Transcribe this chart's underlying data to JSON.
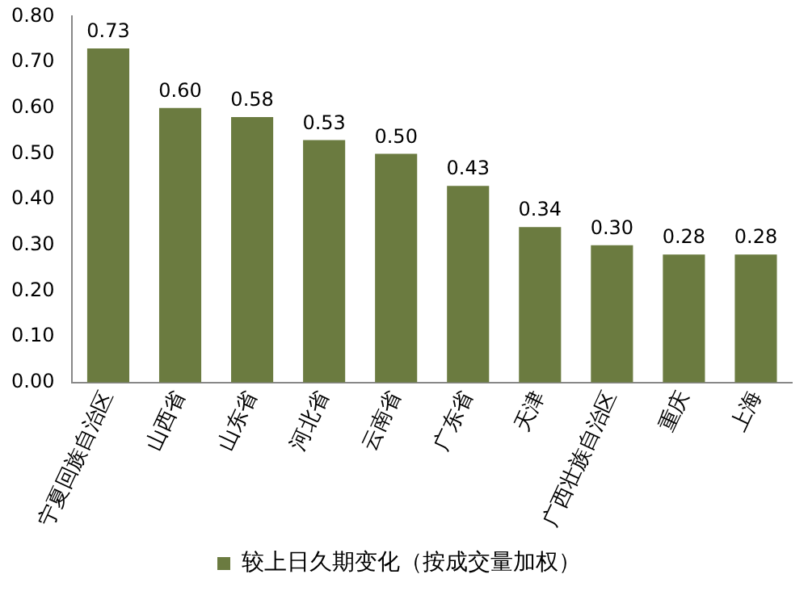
{
  "chart_data": {
    "type": "bar",
    "categories": [
      "宁夏回族自治区",
      "山西省",
      "山东省",
      "河北省",
      "云南省",
      "广东省",
      "天津",
      "广西壮族自治区",
      "重庆",
      "上海"
    ],
    "series": [
      {
        "name": "较上日久期变化（按成交量加权）",
        "color": "#6b7b40",
        "values": [
          0.73,
          0.6,
          0.58,
          0.53,
          0.5,
          0.43,
          0.34,
          0.3,
          0.28,
          0.28
        ],
        "value_labels": [
          "0.73",
          "0.60",
          "0.58",
          "0.53",
          "0.50",
          "0.43",
          "0.34",
          "0.30",
          "0.28",
          "0.28"
        ]
      }
    ],
    "ylim": [
      0,
      0.8
    ],
    "yticks": [
      {
        "value": 0,
        "label": "0.00"
      },
      {
        "value": 0.1,
        "label": "0.10"
      },
      {
        "value": 0.2,
        "label": "0.20"
      },
      {
        "value": 0.3,
        "label": "0.30"
      },
      {
        "value": 0.4,
        "label": "0.40"
      },
      {
        "value": 0.5,
        "label": "0.50"
      },
      {
        "value": 0.6,
        "label": "0.60"
      },
      {
        "value": 0.7,
        "label": "0.70"
      },
      {
        "value": 0.8,
        "label": "0.80"
      }
    ],
    "grid": false,
    "legend": "bottom"
  }
}
